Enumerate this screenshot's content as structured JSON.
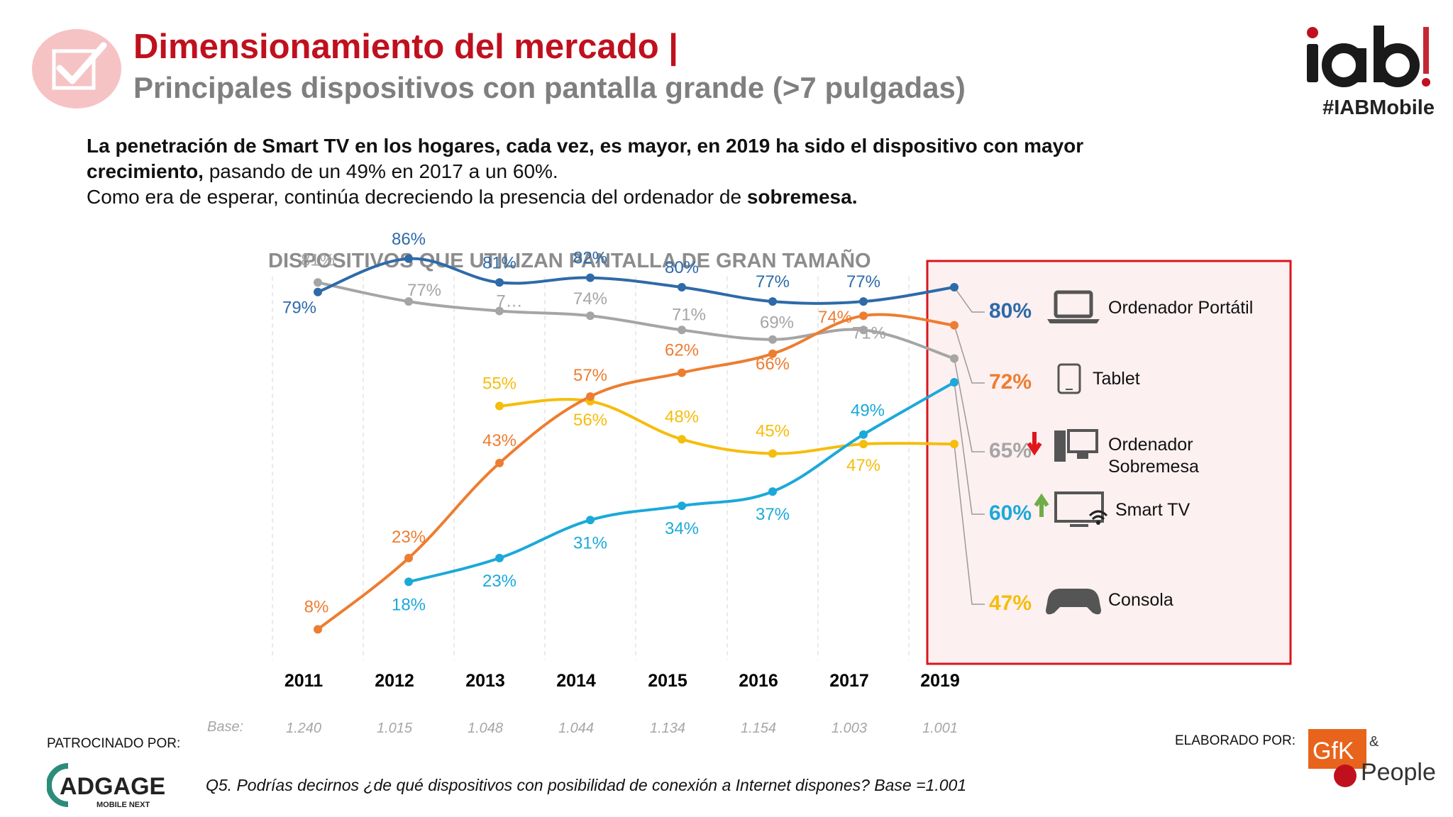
{
  "header": {
    "title": "Dimensionamiento del mercado |",
    "subtitle": "Principales dispositivos con pantalla grande (>7 pulgadas)",
    "hashtag": "#IABMobile",
    "logo_icon": "iab-spain-logo",
    "badge_icon": "checkbox-check-icon"
  },
  "intro": {
    "line1": "La penetración de Smart TV en los hogares, cada vez, es mayor, en 2019 ha sido el dispositivo con mayor",
    "line2_bold": "crecimiento,",
    "line2_rest": " pasando de un 49% en 2017 a un 60%.",
    "line3_rest": "Como era de esperar, continúa decreciendo la presencia del ordenador de ",
    "line3_bold": "sobremesa."
  },
  "chart_data": {
    "type": "line",
    "title": "DISPOSITIVOS QUE UTILIZAN PANTALLA DE GRAN TAMAÑO",
    "categories": [
      "2011",
      "2012",
      "2013",
      "2014",
      "2015",
      "2016",
      "2017",
      "2019"
    ],
    "base_label": "Base:",
    "base_values": [
      "1.240",
      "1.015",
      "1.048",
      "1.044",
      "1.134",
      "1.154",
      "1.003",
      "1.001"
    ],
    "series": [
      {
        "name": "Ordenador Portátil",
        "color": "#2e6aa8",
        "values": [
          79,
          86,
          81,
          82,
          80,
          77,
          77,
          80
        ],
        "labels": [
          "79%",
          "86%",
          "81%",
          "82%",
          "80%",
          "77%",
          "77%",
          "80%"
        ],
        "icon": "laptop-icon"
      },
      {
        "name": "Tablet",
        "color": "#ed7d31",
        "values": [
          8,
          23,
          43,
          57,
          62,
          66,
          74,
          72
        ],
        "labels": [
          "8%",
          "23%",
          "43%",
          "57%",
          "62%",
          "66%",
          "74%",
          "72%"
        ],
        "icon": "tablet-icon"
      },
      {
        "name": "Ordenador Sobremesa",
        "color": "#a5a5a5",
        "values": [
          81,
          77,
          75,
          74,
          71,
          69,
          71,
          65
        ],
        "labels": [
          "81%",
          "77%",
          "7…",
          "74%",
          "71%",
          "69%",
          "71%",
          "65%"
        ],
        "icon": "desktop-computer-icon",
        "trend": "down"
      },
      {
        "name": "Smart TV",
        "color": "#1ba9d9",
        "values": [
          null,
          18,
          23,
          31,
          34,
          37,
          49,
          60
        ],
        "labels": [
          "",
          "18%",
          "23%",
          "31%",
          "34%",
          "37%",
          "49%",
          "60%"
        ],
        "icon": "smart-tv-icon",
        "trend": "up"
      },
      {
        "name": "Consola",
        "color": "#f5bd0c",
        "values": [
          null,
          null,
          55,
          56,
          48,
          45,
          47,
          47
        ],
        "labels": [
          "",
          "",
          "55%",
          "56%",
          "48%",
          "45%",
          "47%",
          "47%"
        ],
        "icon": "gamepad-icon"
      }
    ],
    "legend_name_lines": {
      "Ordenador Sobremesa": [
        "Ordenador",
        "Sobremesa"
      ]
    },
    "ylim": [
      0,
      100
    ],
    "grid": false,
    "legend_position": "right"
  },
  "footer": {
    "sponsor_label": "PATROCINADO POR:",
    "sponsor_logo": "adgage-mobile-next-logo",
    "footnote": "Q5. Podrías decirnos ¿de qué dispositivos con posibilidad de conexión a Internet dispones? Base =1.001",
    "elaborado_label": "ELABORADO POR:",
    "elaborado_logo": "gfk-and-people-logo"
  }
}
